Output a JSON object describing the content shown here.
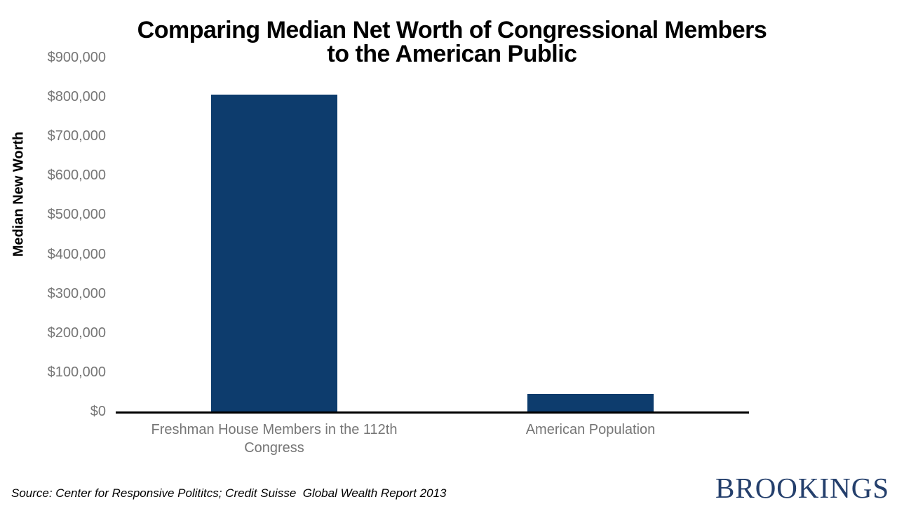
{
  "header": {
    "title_line1": "Comparing Median Net Worth of Congressional Members",
    "title_line2": "to the American Public"
  },
  "chart_data": {
    "type": "bar",
    "title": "Comparing Median Net Worth of Congressional Members to the American Public",
    "xlabel": "",
    "ylabel": "Median New Worth",
    "categories": [
      "Freshman House Members in the 112th Congress",
      "American Population"
    ],
    "values": [
      805000,
      45000
    ],
    "ylim": [
      0,
      900000
    ],
    "yticks": [
      0,
      100000,
      200000,
      300000,
      400000,
      500000,
      600000,
      700000,
      800000,
      900000
    ],
    "ytick_labels": [
      "$0",
      "$100,000",
      "$200,000",
      "$300,000",
      "$400,000",
      "$500,000",
      "$600,000",
      "$700,000",
      "$800,000",
      "$900,000"
    ],
    "grid": false,
    "legend": "none",
    "colors": {
      "bar": "#0d3c6d",
      "axis": "#000000",
      "tick_label": "#767676",
      "title": "#000000"
    }
  },
  "footer": {
    "source": "Source: Center for Responsive Polititcs; Credit Suisse  Global Wealth Report 2013",
    "logo_text": "BROOKINGS",
    "logo_color": "#243f6c"
  }
}
